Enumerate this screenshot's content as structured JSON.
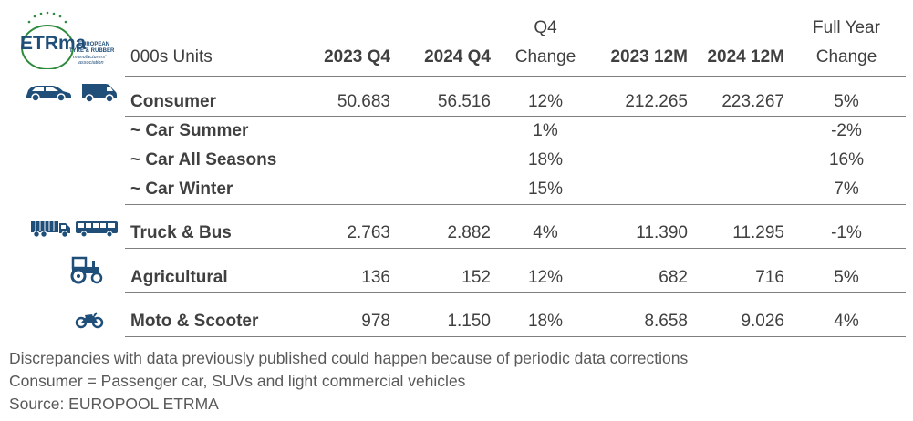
{
  "logo": {
    "text": "ETRma",
    "line1": "EUROPEAN",
    "line2": "TYRE & RUBBER",
    "line3": "manufacturers'",
    "line4": "association"
  },
  "header": {
    "units": "000s Units",
    "q4_group": "Q4",
    "fy_group": "Full Year",
    "col_2023q4": "2023 Q4",
    "col_2024q4": "2024 Q4",
    "col_q4_change": "Change",
    "col_2023_12m": "2023 12M",
    "col_2024_12m": "2024 12M",
    "col_fy_change": "Change"
  },
  "rows": [
    {
      "label": "Consumer",
      "v2023q4": "50.683",
      "v2024q4": "56.516",
      "q4_change": "12%",
      "v2023_12m": "212.265",
      "v2024_12m": "223.267",
      "fy_change": "5%"
    },
    {
      "label": "~ Car Summer",
      "v2023q4": "",
      "v2024q4": "",
      "q4_change": "1%",
      "v2023_12m": "",
      "v2024_12m": "",
      "fy_change": "-2%"
    },
    {
      "label": "~ Car All Seasons",
      "v2023q4": "",
      "v2024q4": "",
      "q4_change": "18%",
      "v2023_12m": "",
      "v2024_12m": "",
      "fy_change": "16%"
    },
    {
      "label": "~ Car Winter",
      "v2023q4": "",
      "v2024q4": "",
      "q4_change": "15%",
      "v2023_12m": "",
      "v2024_12m": "",
      "fy_change": "7%"
    },
    {
      "label": "Truck & Bus",
      "v2023q4": "2.763",
      "v2024q4": "2.882",
      "q4_change": "4%",
      "v2023_12m": "11.390",
      "v2024_12m": "11.295",
      "fy_change": "-1%"
    },
    {
      "label": "Agricultural",
      "v2023q4": "136",
      "v2024q4": "152",
      "q4_change": "12%",
      "v2023_12m": "682",
      "v2024_12m": "716",
      "fy_change": "5%"
    },
    {
      "label": "Moto & Scooter",
      "v2023q4": "978",
      "v2024q4": "1.150",
      "q4_change": "18%",
      "v2023_12m": "8.658",
      "v2024_12m": "9.026",
      "fy_change": "4%"
    }
  ],
  "footnotes": [
    "Discrepancies with data previously published could happen because of periodic data corrections",
    "Consumer = Passenger car, SUVs and light commercial vehicles",
    "Source: EUROPOOL ETRMA"
  ],
  "icons": [
    "car-icon",
    "van-icon",
    "truck-icon",
    "bus-icon",
    "tractor-icon",
    "motorcycle-icon"
  ],
  "colors": {
    "icon_blue": "#1f4e79",
    "logo_green": "#2e8b3e",
    "text": "#404040"
  }
}
